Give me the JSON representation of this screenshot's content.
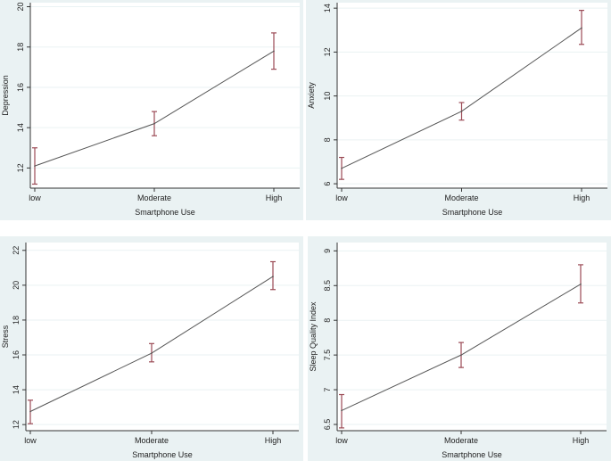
{
  "chart_data": [
    {
      "type": "line",
      "title": "",
      "xlabel": "Smartphone Use",
      "ylabel": "Depression",
      "categories": [
        "low",
        "Moderate",
        "High"
      ],
      "values": [
        12.1,
        14.2,
        17.8
      ],
      "ci_lower": [
        11.2,
        13.6,
        16.9
      ],
      "ci_upper": [
        13.0,
        14.8,
        18.7
      ],
      "yticks": [
        12,
        14,
        16,
        18,
        20
      ],
      "ylim": [
        11.0,
        20.2
      ],
      "grid": true
    },
    {
      "type": "line",
      "title": "",
      "xlabel": "Smartphone Use",
      "ylabel": "Anxiety",
      "categories": [
        "low",
        "Moderate",
        "High"
      ],
      "values": [
        6.7,
        9.3,
        13.1
      ],
      "ci_lower": [
        6.2,
        8.9,
        12.35
      ],
      "ci_upper": [
        7.2,
        9.7,
        13.9
      ],
      "yticks": [
        6,
        8,
        10,
        12,
        14
      ],
      "ylim": [
        5.8,
        14.25
      ],
      "grid": true
    },
    {
      "type": "line",
      "title": "",
      "xlabel": "Smartphone Use",
      "ylabel": "Stress",
      "categories": [
        "low",
        "Moderate",
        "High"
      ],
      "values": [
        12.75,
        16.1,
        20.5
      ],
      "ci_lower": [
        12.05,
        15.6,
        19.75
      ],
      "ci_upper": [
        13.4,
        16.65,
        21.35
      ],
      "yticks": [
        12,
        14,
        16,
        18,
        20,
        22
      ],
      "ylim": [
        11.65,
        22.45
      ],
      "grid": true
    },
    {
      "type": "line",
      "title": "",
      "xlabel": "Smartphone Use",
      "ylabel": "Sleep Quality Index",
      "categories": [
        "low",
        "Moderate",
        "High"
      ],
      "values": [
        6.7,
        7.5,
        8.52
      ],
      "ci_lower": [
        6.45,
        7.32,
        8.25
      ],
      "ci_upper": [
        6.93,
        7.68,
        8.8
      ],
      "yticks": [
        6.5,
        7,
        7.5,
        8,
        8.5,
        9
      ],
      "ylim": [
        6.41,
        9.12
      ],
      "grid": true
    }
  ],
  "colors": {
    "line": "#555555",
    "ci": "#9b4a55",
    "background": "#eaf2f3",
    "plot": "#ffffff",
    "grid": "#eaf2f3"
  }
}
